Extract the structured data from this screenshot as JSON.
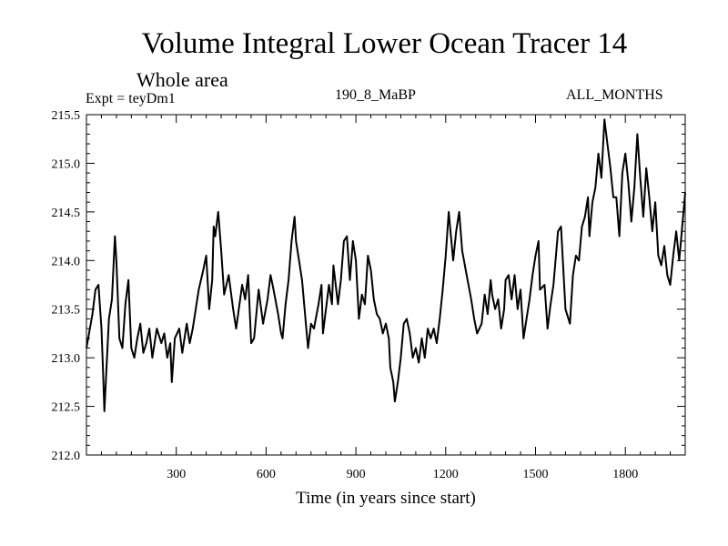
{
  "chart_data": {
    "type": "line",
    "title": "Volume Integral Lower Ocean Tracer 14",
    "subtitle": "Whole area",
    "experiment_label": "Expt = teyDm1",
    "period_label": "190_8_MaBP",
    "months_label": "ALL_MONTHS",
    "xlabel": "Time (in years since start)",
    "ylabel": "",
    "xlim": [
      0,
      2000
    ],
    "ylim": [
      212.0,
      215.5
    ],
    "x_ticks": [
      300,
      600,
      900,
      1200,
      1500,
      1800
    ],
    "y_ticks": [
      "212.0",
      "212.5",
      "213.0",
      "213.5",
      "214.0",
      "214.5",
      "215.0",
      "215.5"
    ],
    "grid": false,
    "series": [
      {
        "name": "Lower Ocean Tracer 14",
        "x": [
          0,
          20,
          30,
          40,
          50,
          55,
          60,
          75,
          85,
          95,
          100,
          110,
          120,
          130,
          140,
          150,
          160,
          170,
          180,
          190,
          200,
          210,
          220,
          235,
          250,
          260,
          270,
          280,
          285,
          295,
          310,
          320,
          335,
          345,
          355,
          365,
          375,
          390,
          400,
          410,
          420,
          425,
          430,
          440,
          450,
          460,
          475,
          490,
          500,
          520,
          530,
          540,
          550,
          560,
          575,
          590,
          605,
          615,
          625,
          640,
          650,
          655,
          665,
          675,
          685,
          695,
          700,
          710,
          720,
          740,
          750,
          760,
          775,
          785,
          790,
          800,
          810,
          820,
          825,
          840,
          850,
          860,
          870,
          880,
          890,
          900,
          910,
          920,
          930,
          940,
          950,
          960,
          970,
          980,
          990,
          1000,
          1010,
          1015,
          1025,
          1030,
          1040,
          1050,
          1060,
          1070,
          1080,
          1090,
          1100,
          1110,
          1120,
          1130,
          1140,
          1150,
          1160,
          1170,
          1180,
          1190,
          1200,
          1210,
          1225,
          1235,
          1245,
          1255,
          1270,
          1285,
          1295,
          1305,
          1320,
          1330,
          1340,
          1350,
          1355,
          1365,
          1375,
          1385,
          1395,
          1400,
          1410,
          1420,
          1430,
          1440,
          1450,
          1460,
          1470,
          1480,
          1490,
          1500,
          1510,
          1515,
          1530,
          1540,
          1550,
          1560,
          1575,
          1585,
          1600,
          1615,
          1625,
          1635,
          1645,
          1655,
          1665,
          1675,
          1680,
          1690,
          1700,
          1710,
          1720,
          1730,
          1740,
          1750,
          1760,
          1770,
          1780,
          1790,
          1800,
          1810,
          1820,
          1830,
          1840,
          1850,
          1860,
          1870,
          1880,
          1890,
          1900,
          1910,
          1920,
          1930,
          1940,
          1950,
          1960,
          1970,
          1980,
          1990,
          2000
        ],
        "y": [
          213.1,
          213.45,
          213.7,
          213.75,
          213.3,
          212.9,
          212.45,
          213.4,
          213.6,
          214.25,
          214.0,
          213.2,
          213.1,
          213.55,
          213.8,
          213.1,
          213.0,
          213.2,
          213.35,
          213.05,
          213.15,
          213.3,
          213.0,
          213.3,
          213.15,
          213.25,
          213.0,
          213.15,
          212.75,
          213.2,
          213.3,
          213.05,
          213.35,
          213.15,
          213.3,
          213.5,
          213.7,
          213.9,
          214.05,
          213.5,
          213.8,
          214.35,
          214.25,
          214.5,
          214.1,
          213.65,
          213.85,
          213.5,
          213.3,
          213.75,
          213.6,
          213.85,
          213.15,
          213.2,
          213.7,
          213.35,
          213.6,
          213.85,
          213.7,
          213.45,
          213.25,
          213.2,
          213.55,
          213.8,
          214.2,
          214.45,
          214.2,
          214.0,
          213.8,
          213.1,
          213.35,
          213.3,
          213.55,
          213.75,
          213.25,
          213.5,
          213.75,
          213.55,
          213.95,
          213.55,
          213.8,
          214.2,
          214.25,
          213.8,
          214.2,
          214.0,
          213.4,
          213.65,
          213.55,
          214.05,
          213.9,
          213.6,
          213.45,
          213.4,
          213.25,
          213.35,
          213.2,
          212.9,
          212.75,
          212.55,
          212.75,
          213.0,
          213.35,
          213.4,
          213.25,
          213.0,
          213.1,
          212.95,
          213.2,
          213.0,
          213.3,
          213.2,
          213.3,
          213.15,
          213.4,
          213.7,
          214.05,
          214.5,
          214.0,
          214.3,
          214.5,
          214.1,
          213.85,
          213.6,
          213.4,
          213.25,
          213.35,
          213.65,
          213.45,
          213.8,
          213.65,
          213.5,
          213.6,
          213.3,
          213.5,
          213.8,
          213.85,
          213.6,
          213.85,
          213.5,
          213.7,
          213.2,
          213.4,
          213.6,
          213.85,
          214.05,
          214.2,
          213.7,
          213.75,
          213.3,
          213.55,
          213.75,
          214.3,
          214.35,
          213.5,
          213.35,
          213.85,
          214.05,
          214.0,
          214.35,
          214.45,
          214.65,
          214.25,
          214.6,
          214.75,
          215.1,
          214.85,
          215.45,
          215.2,
          214.95,
          214.65,
          214.65,
          214.25,
          214.9,
          215.1,
          214.8,
          214.4,
          214.75,
          215.3,
          214.85,
          214.45,
          214.95,
          214.65,
          214.3,
          214.6,
          214.05,
          213.95,
          214.15,
          213.85,
          213.75,
          214.05,
          214.3,
          214.0,
          214.35,
          214.7
        ]
      }
    ]
  }
}
